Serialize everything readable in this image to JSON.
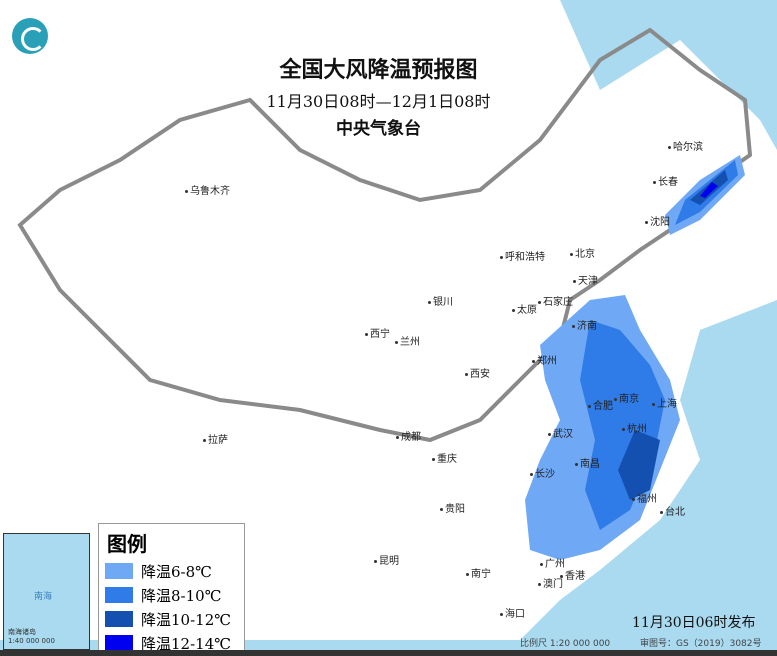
{
  "header": {
    "title": "全国大风降温预报图",
    "period": "11月30日08时—12月1日08时",
    "agency": "中央气象台"
  },
  "legend": {
    "title": "图例",
    "items": [
      {
        "label": "降温6-8℃",
        "color": "#6fa8f5"
      },
      {
        "label": "降温8-10℃",
        "color": "#2f7be8"
      },
      {
        "label": "降温10-12℃",
        "color": "#1450b0"
      },
      {
        "label": "降温12-14℃",
        "color": "#0000f0"
      }
    ]
  },
  "cities": [
    "乌鲁木齐",
    "哈尔滨",
    "长春",
    "沈阳",
    "北京",
    "天津",
    "呼和浩特",
    "石家庄",
    "太原",
    "银川",
    "济南",
    "西宁",
    "兰州",
    "郑州",
    "西安",
    "合肥",
    "南京",
    "上海",
    "武汉",
    "杭州",
    "成都",
    "重庆",
    "拉萨",
    "长沙",
    "南昌",
    "福州",
    "贵阳",
    "昆明",
    "南宁",
    "广州",
    "澳门",
    "香港",
    "海口",
    "台北"
  ],
  "inset": {
    "label": "南海",
    "islands": "南海诸岛",
    "scale": "1:40 000 000"
  },
  "footer": {
    "issued": "11月30日06时发布",
    "scale": "比例尺 1:20 000 000",
    "approval": "审图号：GS（2019）3082号"
  },
  "colors": {
    "sea": "#a9daf0",
    "land": "#ffffff",
    "border": "#8a8a8a"
  }
}
